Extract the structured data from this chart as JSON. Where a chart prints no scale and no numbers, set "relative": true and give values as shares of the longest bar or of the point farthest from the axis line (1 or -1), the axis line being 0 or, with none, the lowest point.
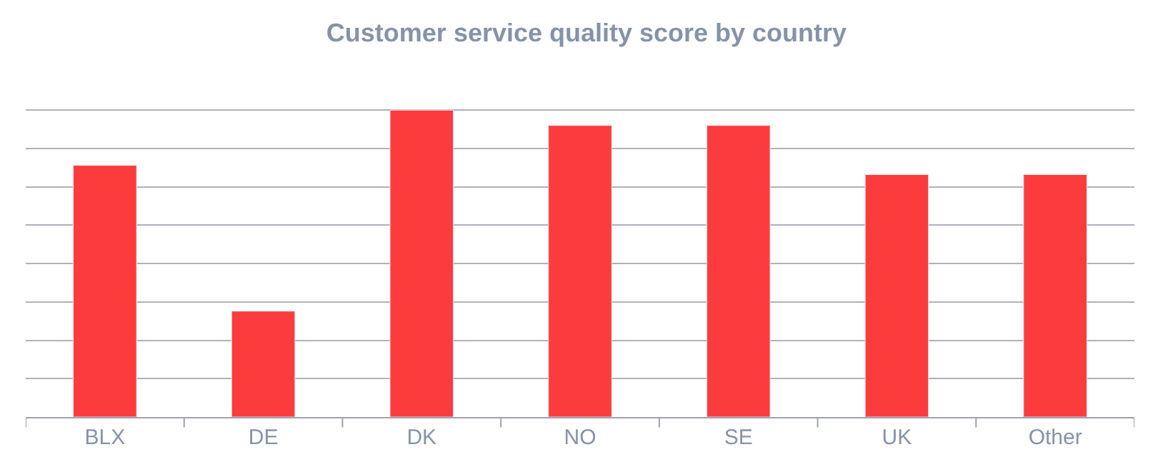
{
  "chart_data": {
    "type": "bar",
    "title": "Customer service quality score by country",
    "relative": true,
    "categories": [
      "BLX",
      "DE",
      "DK",
      "NO",
      "SE",
      "UK",
      "Other"
    ],
    "values": [
      0.82,
      0.345,
      1,
      0.95,
      0.95,
      0.79,
      0.79
    ],
    "color": "#fc3c3c",
    "grid": "y",
    "legend": false
  }
}
